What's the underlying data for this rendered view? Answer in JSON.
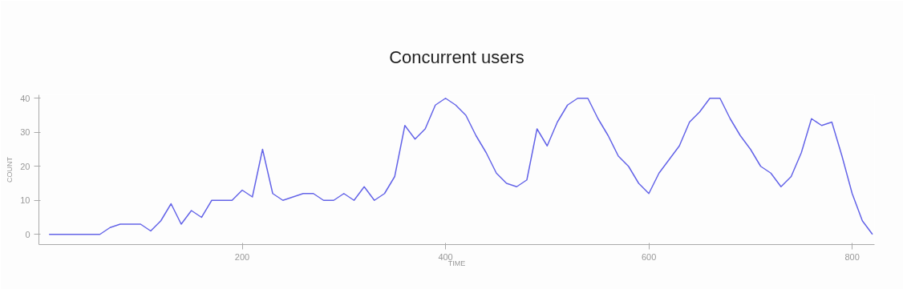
{
  "chart_data": {
    "type": "line",
    "title": "Concurrent users",
    "xlabel": "TIME",
    "ylabel": "COUNT",
    "x": [
      10,
      20,
      30,
      40,
      50,
      60,
      70,
      80,
      90,
      100,
      110,
      120,
      130,
      140,
      150,
      160,
      170,
      180,
      190,
      200,
      210,
      220,
      230,
      240,
      250,
      260,
      270,
      280,
      290,
      300,
      310,
      320,
      330,
      340,
      350,
      360,
      370,
      380,
      390,
      400,
      410,
      420,
      430,
      440,
      450,
      460,
      470,
      480,
      490,
      500,
      510,
      520,
      530,
      540,
      550,
      560,
      570,
      580,
      590,
      600,
      610,
      620,
      630,
      640,
      650,
      660,
      670,
      680,
      690,
      700,
      710,
      720,
      730,
      740,
      750,
      760,
      770,
      780,
      790,
      800,
      810,
      820
    ],
    "series": [
      {
        "color": "#6464e8",
        "values": [
          0,
          0,
          0,
          0,
          0,
          0,
          2,
          3,
          3,
          3,
          1,
          4,
          9,
          3,
          7,
          5,
          10,
          10,
          10,
          13,
          11,
          25,
          12,
          10,
          11,
          12,
          12,
          10,
          10,
          12,
          10,
          14,
          10,
          12,
          17,
          32,
          28,
          31,
          38,
          40,
          38,
          35,
          29,
          24,
          18,
          15,
          14,
          16,
          31,
          26,
          33,
          38,
          40,
          40,
          34,
          29,
          23,
          20,
          15,
          12,
          18,
          22,
          26,
          33,
          36,
          40,
          40,
          34,
          29,
          25,
          20,
          18,
          14,
          17,
          24,
          34,
          32,
          33,
          23,
          12,
          4,
          0
        ]
      }
    ],
    "xlim": [
      0,
      822
    ],
    "ylim": [
      -3,
      41
    ],
    "xticks": [
      200,
      400,
      600,
      800
    ],
    "yticks": [
      0,
      10,
      20,
      30,
      40
    ],
    "grid": false
  }
}
